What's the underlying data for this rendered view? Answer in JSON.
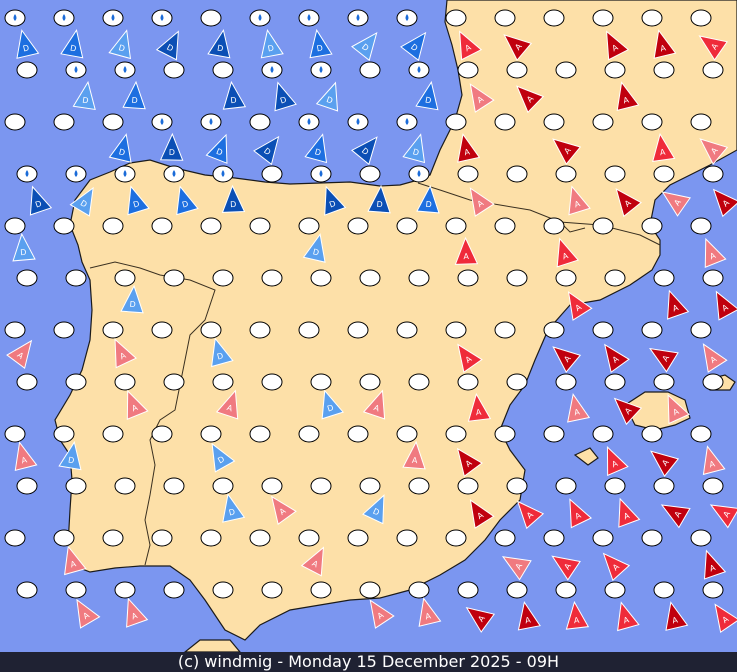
{
  "footer": {
    "credit": "(c) windmig - Monday 15 December 2025 - 09H"
  },
  "colors": {
    "sea": "#7b96f0",
    "land": "#fde0a8",
    "border": "#5a4a30",
    "cloud_fill": "#ffffff",
    "cloud_stroke": "#000000",
    "drop": "#1a6bd8",
    "depression_dark": "#0b4fb5",
    "depression_mid": "#1d6fe0",
    "depression_light": "#5aa0ef",
    "anticyclone_dark": "#c0000e",
    "anticyclone_mid": "#ef2b3a",
    "anticyclone_light": "#f07a80"
  },
  "legend_letters": {
    "depression": "D",
    "anticyclone": "A"
  },
  "symbol_types": [
    "cloud",
    "cloud-rain",
    "depression-arrow",
    "anticyclone-arrow"
  ]
}
